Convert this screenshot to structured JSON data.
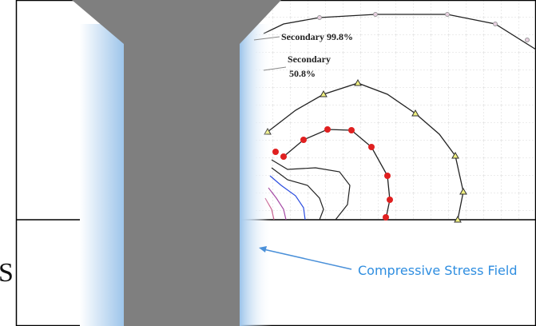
{
  "annotations": [
    {
      "text": "Secondary 99.8%"
    },
    {
      "lines": [
        "Secondary",
        "50.8%"
      ]
    }
  ],
  "callout": "Compressive Stress Field",
  "edge_text": "S"
}
